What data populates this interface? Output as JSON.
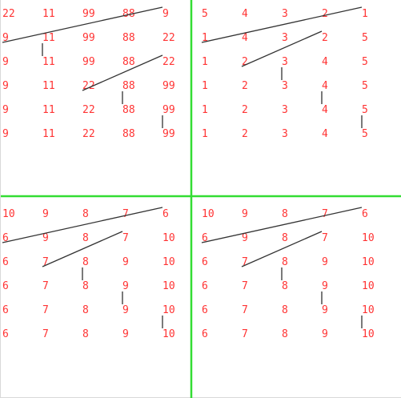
{
  "colors": {
    "number": "#ff3333",
    "trace": "#333333",
    "divider": "#33dd33",
    "background": "#ffffff"
  },
  "panels": [
    {
      "name": "panel-top-left",
      "rows": [
        [
          "22",
          "11",
          "99",
          "88",
          "9"
        ],
        [
          "9",
          "11",
          "99",
          "88",
          "22"
        ],
        [
          "9",
          "11",
          "99",
          "88",
          "22"
        ],
        [
          "9",
          "11",
          "22",
          "88",
          "99"
        ],
        [
          "9",
          "11",
          "22",
          "88",
          "99"
        ],
        [
          "9",
          "11",
          "22",
          "88",
          "99"
        ]
      ],
      "traces": [
        {
          "from": [
            0,
            4
          ],
          "to": [
            1,
            0
          ]
        },
        {
          "from": [
            1,
            1
          ],
          "to": [
            2,
            1
          ]
        },
        {
          "from": [
            2,
            4
          ],
          "to": [
            3,
            2
          ]
        },
        {
          "from": [
            3,
            3
          ],
          "to": [
            4,
            3
          ]
        },
        {
          "from": [
            4,
            4
          ],
          "to": [
            5,
            4
          ]
        }
      ]
    },
    {
      "name": "panel-top-right",
      "rows": [
        [
          "5",
          "4",
          "3",
          "2",
          "1"
        ],
        [
          "1",
          "4",
          "3",
          "2",
          "5"
        ],
        [
          "1",
          "2",
          "3",
          "4",
          "5"
        ],
        [
          "1",
          "2",
          "3",
          "4",
          "5"
        ],
        [
          "1",
          "2",
          "3",
          "4",
          "5"
        ],
        [
          "1",
          "2",
          "3",
          "4",
          "5"
        ]
      ],
      "traces": [
        {
          "from": [
            0,
            4
          ],
          "to": [
            1,
            0
          ]
        },
        {
          "from": [
            1,
            3
          ],
          "to": [
            2,
            1
          ]
        },
        {
          "from": [
            2,
            2
          ],
          "to": [
            3,
            2
          ]
        },
        {
          "from": [
            3,
            3
          ],
          "to": [
            4,
            3
          ]
        },
        {
          "from": [
            4,
            4
          ],
          "to": [
            5,
            4
          ]
        }
      ]
    },
    {
      "name": "panel-bottom-left",
      "rows": [
        [
          "10",
          "9",
          "8",
          "7",
          "6"
        ],
        [
          "6",
          "9",
          "8",
          "7",
          "10"
        ],
        [
          "6",
          "7",
          "8",
          "9",
          "10"
        ],
        [
          "6",
          "7",
          "8",
          "9",
          "10"
        ],
        [
          "6",
          "7",
          "8",
          "9",
          "10"
        ],
        [
          "6",
          "7",
          "8",
          "9",
          "10"
        ]
      ],
      "traces": [
        {
          "from": [
            0,
            4
          ],
          "to": [
            1,
            0
          ]
        },
        {
          "from": [
            1,
            3
          ],
          "to": [
            2,
            1
          ]
        },
        {
          "from": [
            2,
            2
          ],
          "to": [
            3,
            2
          ]
        },
        {
          "from": [
            3,
            3
          ],
          "to": [
            4,
            3
          ]
        },
        {
          "from": [
            4,
            4
          ],
          "to": [
            5,
            4
          ]
        }
      ]
    },
    {
      "name": "panel-bottom-right",
      "rows": [
        [
          "10",
          "9",
          "8",
          "7",
          "6"
        ],
        [
          "6",
          "9",
          "8",
          "7",
          "10"
        ],
        [
          "6",
          "7",
          "8",
          "9",
          "10"
        ],
        [
          "6",
          "7",
          "8",
          "9",
          "10"
        ],
        [
          "6",
          "7",
          "8",
          "9",
          "10"
        ],
        [
          "6",
          "7",
          "8",
          "9",
          "10"
        ]
      ],
      "traces": [
        {
          "from": [
            0,
            4
          ],
          "to": [
            1,
            0
          ]
        },
        {
          "from": [
            1,
            3
          ],
          "to": [
            2,
            1
          ]
        },
        {
          "from": [
            2,
            2
          ],
          "to": [
            3,
            2
          ]
        },
        {
          "from": [
            3,
            3
          ],
          "to": [
            4,
            3
          ]
        },
        {
          "from": [
            4,
            4
          ],
          "to": [
            5,
            4
          ]
        }
      ]
    }
  ]
}
